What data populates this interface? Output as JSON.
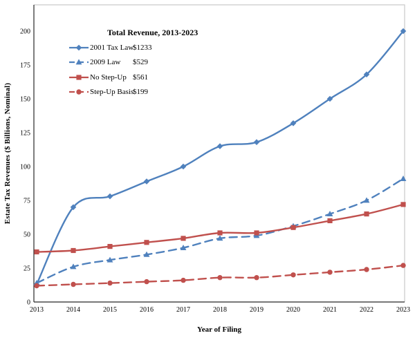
{
  "chart_data": {
    "type": "line",
    "title": "Total Revenue, 2013-2023",
    "xlabel": "Year of Filing",
    "ylabel": "Estate Tax Revenues ($ Billions, Nominal)",
    "x": [
      2013,
      2014,
      2015,
      2016,
      2017,
      2018,
      2019,
      2020,
      2021,
      2022,
      2023
    ],
    "y_ticks": [
      0,
      25,
      50,
      75,
      100,
      125,
      150,
      175,
      200
    ],
    "ylim": [
      0,
      220
    ],
    "grid": false,
    "legend_position": "inside-top-left",
    "series": [
      {
        "name": "2001 Tax Law",
        "total_label": "$1233",
        "color": "#4F81BD",
        "dash": "solid",
        "marker": "diamond",
        "values": [
          13,
          70,
          78,
          89,
          100,
          115,
          118,
          132,
          150,
          168,
          200
        ]
      },
      {
        "name": "2009 Law",
        "total_label": "$529",
        "color": "#4F81BD",
        "dash": "dashed",
        "marker": "triangle",
        "values": [
          14,
          26,
          31,
          35,
          40,
          47,
          49,
          56,
          65,
          75,
          91
        ]
      },
      {
        "name": "No Step-Up",
        "total_label": "$561",
        "color": "#C0504D",
        "dash": "solid",
        "marker": "square",
        "values": [
          37,
          38,
          41,
          44,
          47,
          51,
          51,
          55,
          60,
          65,
          72
        ]
      },
      {
        "name": "Step-Up Basis",
        "total_label": "$199",
        "color": "#C0504D",
        "dash": "dashed",
        "marker": "circle",
        "values": [
          12,
          13,
          14,
          15,
          16,
          18,
          18,
          20,
          22,
          24,
          27
        ]
      }
    ]
  },
  "colors": {
    "blue": "#4F81BD",
    "red": "#C0504D",
    "axis": "#262626",
    "plot_border": "#C9C9C9",
    "text": "#000000"
  }
}
